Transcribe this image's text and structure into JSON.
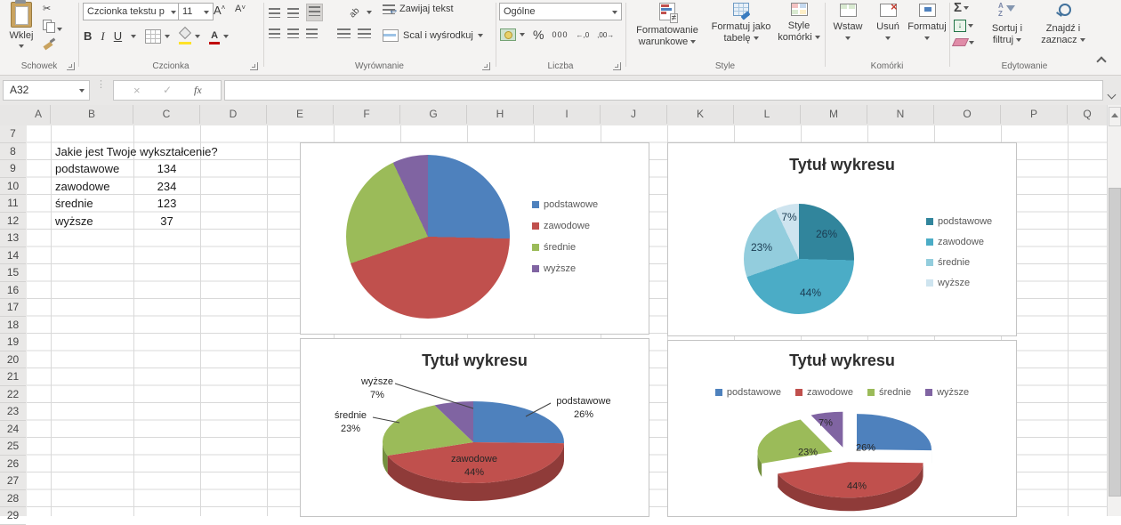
{
  "ribbon": {
    "schowek": {
      "label": "Schowek",
      "paste": "Wklej"
    },
    "czcionka": {
      "label": "Czcionka",
      "font_name": "Czcionka tekstu p",
      "font_size": "11",
      "bold": "B",
      "italic": "I",
      "underline": "U",
      "grow": "A",
      "shrink": "A"
    },
    "wyrownanie": {
      "label": "Wyrównanie",
      "wrap": "Zawijaj tekst",
      "merge": "Scal i wyśrodkuj",
      "orientation": "ab"
    },
    "liczba": {
      "label": "Liczba",
      "number_format": "Ogólne",
      "percent": "%",
      "thousands": "000",
      "inc_dec": "←,0",
      "dec_dec": ",00→"
    },
    "style": {
      "label": "Style",
      "conditional": "Formatowanie warunkowe",
      "format_table": "Formatuj jako tabelę",
      "cell_styles": "Style komórki",
      "neq": "≠"
    },
    "komorki": {
      "label": "Komórki",
      "insert": "Wstaw",
      "delete": "Usuń",
      "format": "Formatuj"
    },
    "edytowanie": {
      "label": "Edytowanie",
      "sum": "Σ",
      "sort": "Sortuj i filtruj",
      "find": "Znajdź i zaznacz",
      "sort_a": "A",
      "sort_z": "Z"
    }
  },
  "icons": {
    "paste": "clipboard-shape",
    "cut": "✂",
    "copy": "pages-shape",
    "format_painter": "brush-shape",
    "dropdown_arrow": "css-triangle-down",
    "dialog_launcher": "corner-arrow",
    "collapse_ribbon": "css-chevron-up",
    "cancel": "×",
    "check": "✓",
    "fx": "fx",
    "scroll_up": "css-triangle-up",
    "select_all": "css-corner-triangle",
    "borders": "grid-shape",
    "fill_color": "bucket-shape",
    "font_color": "A-red-bar",
    "wrap_return": "↩",
    "sum": "Σ",
    "fill_down": "↓",
    "eraser": "pink-skew-shape",
    "sort_funnel": "funnel-shape",
    "magnifier": "lens-shape"
  },
  "formula_bar": {
    "name_box": "A32",
    "fx": "fx",
    "value": ""
  },
  "sheet": {
    "columns": [
      "A",
      "B",
      "C",
      "D",
      "E",
      "F",
      "G",
      "H",
      "I",
      "J",
      "K",
      "L",
      "M",
      "N",
      "O",
      "P",
      "Q"
    ],
    "row_start": 7,
    "row_end": 29,
    "question": "Jakie jest Twoje wykształcenie?",
    "table": [
      {
        "label": "podstawowe",
        "value": "134"
      },
      {
        "label": "zawodowe",
        "value": "234"
      },
      {
        "label": "średnie",
        "value": "123"
      },
      {
        "label": "wyższe",
        "value": "37"
      }
    ]
  },
  "chart_data": [
    {
      "type": "pie",
      "style": "2d",
      "title": "",
      "categories": [
        "podstawowe",
        "zawodowe",
        "średnie",
        "wyższe"
      ],
      "values": [
        134,
        234,
        123,
        37
      ],
      "colors": [
        "#4E81BD",
        "#C0504D",
        "#9BBB59",
        "#8064A2"
      ],
      "legend_position": "right"
    },
    {
      "type": "pie",
      "style": "2d-monochromatic",
      "title": "Tytuł wykresu",
      "categories": [
        "podstawowe",
        "zawodowe",
        "średnie",
        "wyższe"
      ],
      "values": [
        134,
        234,
        123,
        37
      ],
      "pct": [
        "26%",
        "44%",
        "23%",
        "7%"
      ],
      "colors": [
        "#31859C",
        "#4BACC6",
        "#93CDDD",
        "#CEE4EF"
      ],
      "legend_position": "right"
    },
    {
      "type": "pie",
      "style": "3d",
      "title": "Tytuł wykresu",
      "categories": [
        "podstawowe",
        "zawodowe",
        "średnie",
        "wyższe"
      ],
      "values": [
        134,
        234,
        123,
        37
      ],
      "pct": [
        "26%",
        "44%",
        "23%",
        "7%"
      ],
      "colors": [
        "#4E81BD",
        "#C0504D",
        "#9BBB59",
        "#8064A2"
      ],
      "dark_colors": [
        "#38618F",
        "#8F3B39",
        "#74903F",
        "#5F4879"
      ],
      "data_labels": "category+percent",
      "legend_position": "none"
    },
    {
      "type": "pie",
      "style": "3d-exploded",
      "title": "Tytuł wykresu",
      "categories": [
        "podstawowe",
        "zawodowe",
        "średnie",
        "wyższe"
      ],
      "values": [
        134,
        234,
        123,
        37
      ],
      "pct": [
        "26%",
        "44%",
        "23%",
        "7%"
      ],
      "colors": [
        "#4E81BD",
        "#C0504D",
        "#9BBB59",
        "#8064A2"
      ],
      "dark_colors": [
        "#38618F",
        "#8F3B39",
        "#74903F",
        "#5F4879"
      ],
      "legend_position": "top"
    }
  ],
  "colors": {
    "excel_green": "#217346",
    "header_underline": "#1E7145",
    "gridline": "#D9D9D9",
    "legend_text": "#595959"
  }
}
